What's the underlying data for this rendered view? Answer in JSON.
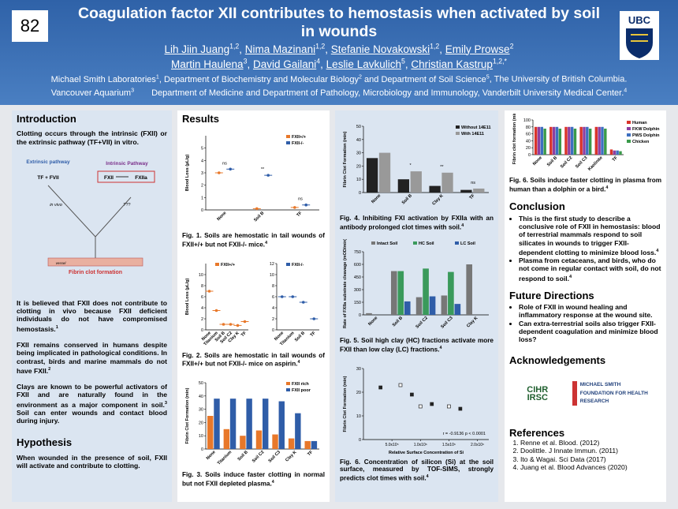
{
  "header": {
    "number": "82",
    "title": "Coagulation factor XII contributes to hemostasis when activated by soil in wounds",
    "logo_text": "UBC",
    "authors": [
      [
        {
          "name": "Lih Jiin Juang",
          "sup": "1,2"
        },
        {
          "name": "Nima Mazinani",
          "sup": "1,2"
        },
        {
          "name": "Stefanie Novakowski",
          "sup": "1,2"
        },
        {
          "name": "Emily Prowse",
          "sup": "2"
        }
      ],
      [
        {
          "name": "Martin Haulena",
          "sup": "3"
        },
        {
          "name": "David Gailani",
          "sup": "4"
        },
        {
          "name": "Leslie Lavkulich",
          "sup": "5"
        },
        {
          "name": "Christian Kastrup",
          "sup": "1,2,*"
        }
      ]
    ],
    "affiliations": [
      [
        {
          "text": "Michael Smith Laboratories",
          "sup": "1"
        },
        {
          "text": ", Department of Biochemistry and Molecular Biology",
          "sup": "2"
        },
        {
          "text": " and Department of Soil Science",
          "sup": "5"
        },
        {
          "text": ", The University of British Columbia."
        }
      ],
      [
        {
          "text": "Vancouver Aquarium",
          "sup": "3"
        },
        {
          "text": "  Department of Medicine and Department of Pathology, Microbiology and Immunology, Vanderbilt University Medical Center.",
          "sup": "4"
        }
      ]
    ]
  },
  "introduction": {
    "heading": "Introduction",
    "paragraphs": [
      {
        "text": "Clotting occurs through the intrinsic (FXII) or the extrinsic pathway (TF+VII) in vitro."
      },
      {
        "text": "It is believed that FXII does not contribute to clotting in vivo because FXII deficient individuals do not have compromised hemostasis.",
        "sup": "1"
      },
      {
        "text": "FXII remains conserved in humans despite being implicated in pathological conditions. In contrast, birds and marine mammals do not have FXII.",
        "sup": "2"
      },
      {
        "text": "Clays are known to be powerful activators of FXII and are naturally found in the environment as a major component in soil.",
        "sup": "3"
      },
      {
        "text": "Soil can enter wounds and contact blood during injury."
      }
    ]
  },
  "diagram": {
    "extrinsic": "Extrinsic pathway",
    "intrinsic": "Intrinsic Pathway",
    "tf": "TF + FVII",
    "fxii": "FXII",
    "fxiia": "FXIIa",
    "invivo": "in vivo",
    "unknown": "???",
    "vessel": "vessel",
    "clot": "Fibrin clot formation"
  },
  "hypothesis": {
    "heading": "Hypothesis",
    "text": "When wounded in the presence of soil, FXII will activate and contribute to clotting."
  },
  "results": {
    "heading": "Results",
    "figures": [
      {
        "caption": {
          "text": "Fig. 1. Soils are hemostatic in tail wounds of FXII+/+ but not FXII-/- mice.",
          "sup": "4"
        },
        "chart_data": {
          "type": "dot",
          "ylabel": "Blood Loss (µL/g)",
          "categories": [
            "None",
            "Soil B",
            "TF"
          ],
          "series": [
            {
              "name": "FXII+/+",
              "color": "#e8782a",
              "values": [
                3.0,
                0.1,
                0.2
              ]
            },
            {
              "name": "FXII-/-",
              "color": "#2f5da8",
              "values": [
                3.3,
                2.8,
                0.4
              ]
            }
          ],
          "annotations": [
            "ns",
            "**",
            "ns"
          ],
          "ylim": [
            0,
            6
          ],
          "yticks": [
            0,
            1,
            2,
            3,
            4,
            5
          ],
          "legend": "upper right"
        }
      },
      {
        "caption": {
          "text": "Fig. 2. Soils are hemostatic in tail wounds of FXII+/+ but not FXII-/- mice on aspirin.",
          "sup": "4"
        },
        "chart_data": [
          {
            "type": "dot",
            "ylabel": "Blood Loss (µL/g)",
            "categories": [
              "None",
              "Titanium",
              "Soil B",
              "Soil C2",
              "Clay K",
              "TF"
            ],
            "series": [
              {
                "name": "FXII+/+",
                "color": "#e8782a",
                "values": [
                  7,
                  3.5,
                  1,
                  1,
                  0.8,
                  1.5
                ]
              }
            ],
            "ylim": [
              0,
              12
            ],
            "yticks": [
              0,
              2,
              4,
              6,
              8,
              10
            ],
            "legend": "upper right"
          },
          {
            "type": "dot",
            "categories": [
              "None",
              "Titanium",
              "Soil B",
              "TF"
            ],
            "series": [
              {
                "name": "FXII-/-",
                "color": "#2f5da8",
                "values": [
                  6,
                  6,
                  5,
                  2
                ]
              }
            ],
            "ylim": [
              0,
              12
            ],
            "yticks": [
              0,
              2,
              4,
              6,
              8,
              10,
              12
            ],
            "legend": "upper right"
          }
        ]
      },
      {
        "caption": {
          "text": "Fig. 3. Soils induce faster clotting in normal but not FXII depleted plasma.",
          "sup": "4"
        },
        "chart_data": {
          "type": "bar",
          "ylabel": "Fibrin Clot Formation (min)",
          "categories": [
            "None",
            "Titanium",
            "Soil B",
            "Soil C2",
            "Soil C3",
            "Clay K",
            "TF"
          ],
          "series": [
            {
              "name": "FXII rich",
              "color": "#e8782a",
              "values": [
                25,
                15,
                10,
                14,
                11,
                8,
                6
              ]
            },
            {
              "name": "FXII poor",
              "color": "#2f5da8",
              "values": [
                38,
                38,
                38,
                38,
                36,
                27,
                6
              ]
            }
          ],
          "ylim": [
            0,
            50
          ],
          "yticks": [
            0,
            10,
            20,
            30,
            40,
            50
          ],
          "legend": "upper right"
        }
      },
      {
        "caption": {
          "text": "Fig. 4. Inhibiting FXI activation by FXIIa with an antibody prolonged clot times with soil.",
          "sup": "4"
        },
        "chart_data": {
          "type": "bar",
          "ylabel": "Fibrin Clot Formation (min)",
          "categories": [
            "None",
            "Soil B",
            "Clay K",
            "TF"
          ],
          "series": [
            {
              "name": "Without 14E11",
              "color": "#222222",
              "values": [
                26,
                10,
                5,
                2
              ]
            },
            {
              "name": "With 14E11",
              "color": "#999999",
              "values": [
                30,
                16,
                15,
                3
              ]
            }
          ],
          "annotations": [
            null,
            "*",
            "**",
            "ns"
          ],
          "ylim": [
            0,
            50
          ],
          "yticks": [
            0,
            10,
            20,
            30,
            40,
            50
          ],
          "legend": "upper right"
        }
      },
      {
        "caption": {
          "text": "Fig. 5. Soil high clay (HC) fractions activate more FXII than low clay (LC) fractions.",
          "sup": "4"
        },
        "chart_data": {
          "type": "bar",
          "ylabel": "Rate of FXIIa substrate cleavage (mOD/min)",
          "categories": [
            "None",
            "Soil B",
            "Soil C2",
            "Soil C3",
            "Clay K"
          ],
          "series": [
            {
              "name": "Intact Soil",
              "color": "#777777",
              "values": [
                20,
                520,
                210,
                230,
                600
              ]
            },
            {
              "name": "HC Soil",
              "color": "#3a9a5b",
              "values": [
                null,
                520,
                550,
                510,
                null
              ]
            },
            {
              "name": "LC Soil",
              "color": "#2f5da8",
              "values": [
                null,
                160,
                220,
                130,
                null
              ]
            }
          ],
          "ylim": [
            0,
            750
          ],
          "yticks": [
            0,
            150,
            300,
            450,
            600,
            750
          ],
          "legend": "top"
        }
      },
      {
        "caption": {
          "text": "Fig. 6. Concentration of silicon (Si) at the soil surface, measured by TOF-SIMS, strongly predicts clot times with soil.",
          "sup": "4"
        },
        "chart_data": {
          "type": "scatter",
          "ylabel": "Fibrin Clot Formation (min)",
          "xlabel": "Relative Surface Concentration of Si",
          "x": [
            300000,
            650000,
            850000,
            1000000,
            1200000,
            1500000,
            1700000
          ],
          "values": [
            22,
            23,
            19,
            14,
            15,
            14,
            13
          ],
          "note": "r = -0.9136  p < 0.0001",
          "color": "#222222",
          "xlim": [
            0,
            2200000
          ],
          "xticks": [
            {
              "value": 500000,
              "label": "5.0x10⁵"
            },
            {
              "value": 1000000,
              "label": "1.0x10⁶"
            },
            {
              "value": 1500000,
              "label": "1.5x10⁶"
            },
            {
              "value": 2000000,
              "label": "2.0x10⁶"
            }
          ],
          "ylim": [
            0,
            30
          ],
          "yticks": [
            0,
            10,
            20,
            30
          ]
        }
      },
      {
        "caption": {
          "text": "Fig. 6. Soils induce faster clotting in plasma from human than a dolphin or a bird.",
          "sup": "4"
        },
        "chart_data": {
          "type": "bar",
          "ylabel": "Fibrin clot formation (min)",
          "categories": [
            "None",
            "Soil B",
            "Soil C2",
            "Soil C3",
            "Kaolinite",
            "TF"
          ],
          "series": [
            {
              "name": "Human",
              "color": "#d9342b",
              "values": [
                80,
                80,
                80,
                80,
                80,
                15
              ]
            },
            {
              "name": "FKW Dolphin",
              "color": "#8e3fa0",
              "values": [
                80,
                80,
                80,
                80,
                80,
                12
              ]
            },
            {
              "name": "PWS Dolphin",
              "color": "#3d6fc0",
              "values": [
                80,
                80,
                80,
                80,
                80,
                12
              ]
            },
            {
              "name": "Chicken",
              "color": "#3a9a4a",
              "values": [
                75,
                75,
                75,
                75,
                75,
                10
              ]
            }
          ],
          "ylim": [
            0,
            100
          ],
          "yticks": [
            0,
            20,
            40,
            60,
            80,
            100
          ],
          "legend": "right"
        }
      }
    ]
  },
  "conclusion": {
    "heading": "Conclusion",
    "bullets": [
      {
        "text": "This is the first study to describe a conclusive role of FXII in hemostasis: blood of terrestrial mammals respond to soil silicates in wounds to trigger FXII-dependent clotting to minimize blood loss.",
        "sup": "4"
      },
      {
        "text": "Plasma from cetaceans, and birds, who do not come in regular contact with soil, do not respond to soil.",
        "sup": "4"
      }
    ]
  },
  "future": {
    "heading": "Future Directions",
    "bullets": [
      {
        "text": "Role of FXII in wound healing and inflammatory response at the wound site."
      },
      {
        "text": "Can extra-terrestrial soils also trigger FXII-dependent coagulation and minimize blood loss?"
      }
    ]
  },
  "acknowledgements": {
    "heading": "Acknowledgements",
    "logos": [
      "CIHR IRSC",
      "MICHAEL SMITH FOUNDATION FOR HEALTH RESEARCH"
    ]
  },
  "references": {
    "heading": "References",
    "items": [
      "Renne et al. Blood. (2012)",
      "Doolittle. J Innate Immun. (2011)",
      "Ito & Wagai. Sci Data (2017)",
      "Juang et al. Blood Advances (2020)"
    ]
  }
}
